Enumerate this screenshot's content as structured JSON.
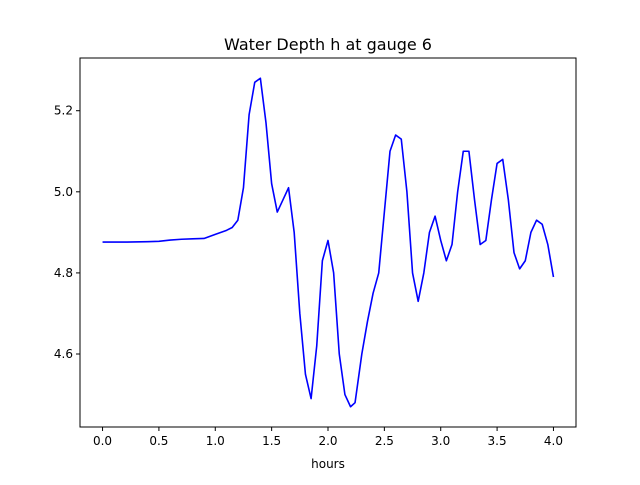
{
  "chart_data": {
    "type": "line",
    "title": "Water Depth h at gauge 6",
    "xlabel": "hours",
    "ylabel": "",
    "xlim": [
      -0.2,
      4.2
    ],
    "ylim": [
      4.42,
      5.33
    ],
    "x_ticks": [
      0.0,
      0.5,
      1.0,
      1.5,
      2.0,
      2.5,
      3.0,
      3.5,
      4.0
    ],
    "x_tick_labels": [
      "0.0",
      "0.5",
      "1.0",
      "1.5",
      "2.0",
      "2.5",
      "3.0",
      "3.5",
      "4.0"
    ],
    "y_ticks": [
      4.6,
      4.8,
      5.0,
      5.2
    ],
    "y_tick_labels": [
      "4.6",
      "4.8",
      "5.0",
      "5.2"
    ],
    "grid": false,
    "series": [
      {
        "color": "#0000ff",
        "x": [
          0.0,
          0.2,
          0.4,
          0.5,
          0.6,
          0.7,
          0.8,
          0.9,
          1.0,
          1.1,
          1.15,
          1.2,
          1.25,
          1.3,
          1.35,
          1.4,
          1.45,
          1.5,
          1.55,
          1.6,
          1.65,
          1.7,
          1.75,
          1.8,
          1.85,
          1.9,
          1.95,
          2.0,
          2.05,
          2.1,
          2.15,
          2.2,
          2.24,
          2.3,
          2.35,
          2.4,
          2.45,
          2.5,
          2.55,
          2.6,
          2.65,
          2.7,
          2.75,
          2.8,
          2.85,
          2.9,
          2.95,
          3.0,
          3.05,
          3.1,
          3.15,
          3.2,
          3.25,
          3.3,
          3.35,
          3.4,
          3.45,
          3.5,
          3.55,
          3.6,
          3.65,
          3.7,
          3.75,
          3.8,
          3.85,
          3.9,
          3.95,
          4.0
        ],
        "y": [
          4.876,
          4.876,
          4.877,
          4.878,
          4.881,
          4.883,
          4.884,
          4.885,
          4.895,
          4.905,
          4.912,
          4.93,
          5.01,
          5.19,
          5.27,
          5.28,
          5.17,
          5.02,
          4.95,
          4.98,
          5.01,
          4.9,
          4.7,
          4.55,
          4.49,
          4.62,
          4.83,
          4.88,
          4.8,
          4.6,
          4.5,
          4.47,
          4.48,
          4.6,
          4.68,
          4.75,
          4.8,
          4.95,
          5.1,
          5.14,
          5.13,
          5.0,
          4.8,
          4.73,
          4.8,
          4.9,
          4.94,
          4.88,
          4.83,
          4.87,
          5.0,
          5.1,
          5.1,
          4.98,
          4.87,
          4.88,
          4.98,
          5.07,
          5.08,
          4.98,
          4.85,
          4.81,
          4.83,
          4.9,
          4.93,
          4.92,
          4.87,
          4.79
        ]
      }
    ]
  }
}
